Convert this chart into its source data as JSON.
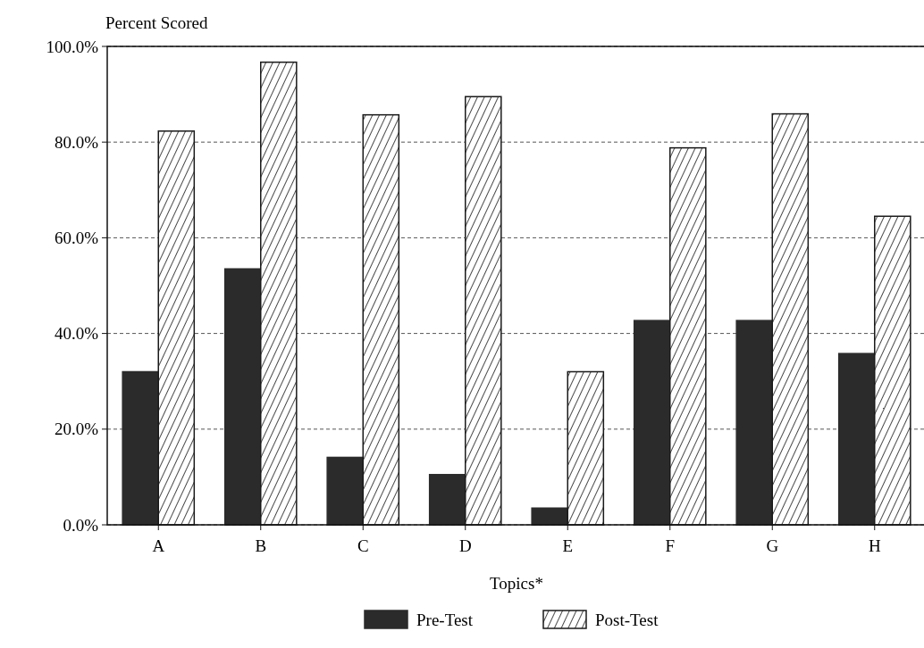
{
  "chart_data": {
    "type": "bar",
    "ylabel": "Percent Scored",
    "xlabel": "Topics*",
    "categories": [
      "A",
      "B",
      "C",
      "D",
      "E",
      "F",
      "G",
      "H"
    ],
    "series": [
      {
        "name": "Pre-Test",
        "color": "#2b2b2b",
        "values": [
          32.0,
          53.5,
          14.1,
          10.5,
          3.5,
          42.7,
          42.7,
          35.8
        ]
      },
      {
        "name": "Post-Test",
        "color": "#1a1a1a",
        "values": [
          82.3,
          96.7,
          85.7,
          89.5,
          32.0,
          78.8,
          85.9,
          64.5
        ]
      }
    ],
    "ylim": [
      0,
      100
    ],
    "yticks": [
      {
        "value": 0,
        "label": "0.0%"
      },
      {
        "value": 20,
        "label": "20.0%"
      },
      {
        "value": 40,
        "label": "40.0%"
      },
      {
        "value": 60,
        "label": "60.0%"
      },
      {
        "value": 80,
        "label": "80.0%"
      },
      {
        "value": 100,
        "label": "100.0%"
      }
    ],
    "grid": "y",
    "legend": "bottom"
  }
}
